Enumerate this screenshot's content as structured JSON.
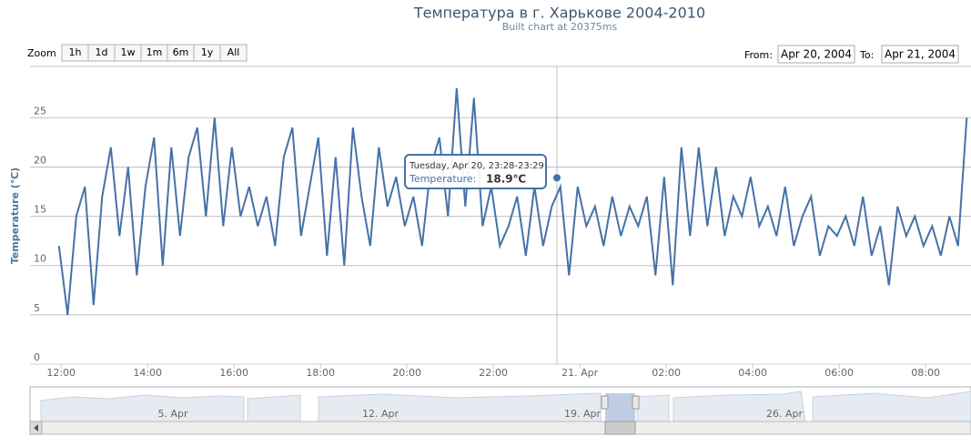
{
  "chart_data": {
    "type": "line",
    "title": "Температура в г. Харькове 2004-2010",
    "subtitle": "Built chart at 20375ms",
    "y_label": "Temperature (℃)",
    "color": "#4572a7",
    "x": [
      11.95,
      12.15,
      12.35,
      12.55,
      12.75,
      12.95,
      13.15,
      13.35,
      13.55,
      13.75,
      13.95,
      14.15,
      14.35,
      14.55,
      14.75,
      14.95,
      15.15,
      15.35,
      15.55,
      15.75,
      15.95,
      16.15,
      16.35,
      16.55,
      16.75,
      16.95,
      17.15,
      17.35,
      17.55,
      17.75,
      17.95,
      18.15,
      18.35,
      18.55,
      18.75,
      18.95,
      19.15,
      19.35,
      19.55,
      19.75,
      19.95,
      20.15,
      20.35,
      20.55,
      20.75,
      20.95,
      21.15,
      21.35,
      21.55,
      21.75,
      21.95,
      22.15,
      22.35,
      22.55,
      22.75,
      22.95,
      23.15,
      23.35,
      23.55,
      23.75,
      23.95,
      24.15,
      24.35,
      24.55,
      24.75,
      24.95,
      25.15,
      25.35,
      25.55,
      25.75,
      25.95,
      26.15,
      26.35,
      26.55,
      26.75,
      26.95,
      27.15,
      27.35,
      27.55,
      27.75,
      27.95,
      28.15,
      28.35,
      28.55,
      28.75,
      28.95,
      29.15,
      29.35,
      29.55,
      29.75,
      29.95,
      30.15,
      30.35,
      30.55,
      30.75,
      30.95,
      31.15,
      31.35,
      31.55,
      31.75,
      31.95,
      32.15,
      32.35,
      32.55,
      32.75,
      32.95
    ],
    "values": [
      12,
      5,
      15,
      18,
      6,
      17,
      22,
      13,
      20,
      9,
      18,
      23,
      10,
      22,
      13,
      21,
      24,
      15,
      25,
      14,
      22,
      15,
      18,
      14,
      17,
      12,
      21,
      24,
      13,
      18,
      23,
      11,
      21,
      10,
      24,
      17,
      12,
      22,
      16,
      19,
      14,
      17,
      12,
      20,
      23,
      15,
      28,
      16,
      27,
      14,
      18,
      12,
      14,
      17,
      11,
      18,
      12,
      16,
      18,
      9,
      18,
      14,
      16,
      12,
      17,
      13,
      16,
      14,
      17,
      9,
      19,
      8,
      22,
      13,
      22,
      14,
      20,
      13,
      17,
      15,
      19,
      14,
      16,
      13,
      18,
      12,
      15,
      17,
      11,
      14,
      13,
      15,
      12,
      17,
      11,
      14,
      8,
      16,
      13,
      15,
      12,
      14,
      11,
      15,
      12,
      25
    ],
    "xlim": [
      11.28,
      33.05
    ],
    "xticks": [
      {
        "value": 12,
        "label": "12:00"
      },
      {
        "value": 14,
        "label": "14:00"
      },
      {
        "value": 16,
        "label": "16:00"
      },
      {
        "value": 18,
        "label": "18:00"
      },
      {
        "value": 20,
        "label": "20:00"
      },
      {
        "value": 22,
        "label": "22:00"
      },
      {
        "value": 24,
        "label": "21. Apr"
      },
      {
        "value": 26,
        "label": "02:00"
      },
      {
        "value": 28,
        "label": "04:00"
      },
      {
        "value": 30,
        "label": "06:00"
      },
      {
        "value": 32,
        "label": "08:00"
      }
    ],
    "ylim": [
      0,
      30.2
    ],
    "yticks": [
      0,
      5,
      10,
      15,
      20,
      25
    ],
    "grid": true,
    "tooltip": {
      "x": 23.47,
      "value": 18.9,
      "header": "Tuesday, Apr 20, 23:28-23:29",
      "label": "Temperature:",
      "value_label": "18.9℃"
    },
    "zoom": {
      "label": "Zoom",
      "buttons": [
        "1h",
        "1d",
        "1w",
        "1m",
        "6m",
        "1y",
        "All"
      ]
    },
    "range": {
      "from_label": "From:",
      "from": "Apr 20, 2004",
      "to_label": "To:",
      "to": "Apr 21, 2004"
    },
    "navigator": {
      "labels": [
        "5. Apr",
        "12. Apr",
        "19. Apr",
        "26. Apr"
      ]
    }
  }
}
